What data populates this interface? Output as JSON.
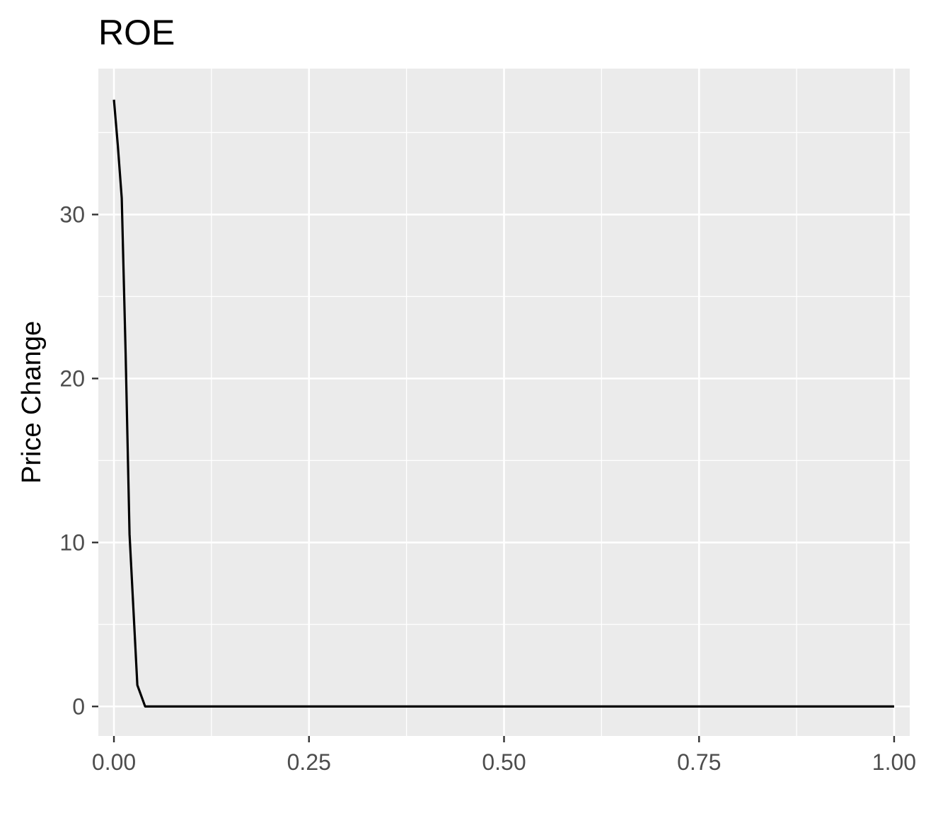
{
  "chart_data": {
    "type": "line",
    "title": "ROE",
    "xlabel": "",
    "ylabel": "Price Change",
    "xlim": [
      -0.02,
      1.02
    ],
    "ylim": [
      -1.8,
      38.9
    ],
    "x_ticks": [
      0.0,
      0.25,
      0.5,
      0.75,
      1.0
    ],
    "x_tick_labels": [
      "0.00",
      "0.25",
      "0.50",
      "0.75",
      "1.00"
    ],
    "y_ticks": [
      0,
      10,
      20,
      30
    ],
    "y_tick_labels": [
      "0",
      "10",
      "20",
      "30"
    ],
    "grid": true,
    "background": "#ebebeb",
    "line_color": "#000000",
    "series": [
      {
        "x": [
          0.0,
          0.005,
          0.01,
          0.015,
          0.02,
          0.03,
          0.04,
          0.05,
          0.1,
          0.25,
          0.5,
          0.75,
          1.0
        ],
        "y": [
          37.0,
          34.2,
          31.0,
          21.5,
          10.5,
          1.3,
          0.0,
          0.0,
          0.0,
          0.0,
          0.0,
          0.0,
          0.0
        ]
      }
    ]
  }
}
